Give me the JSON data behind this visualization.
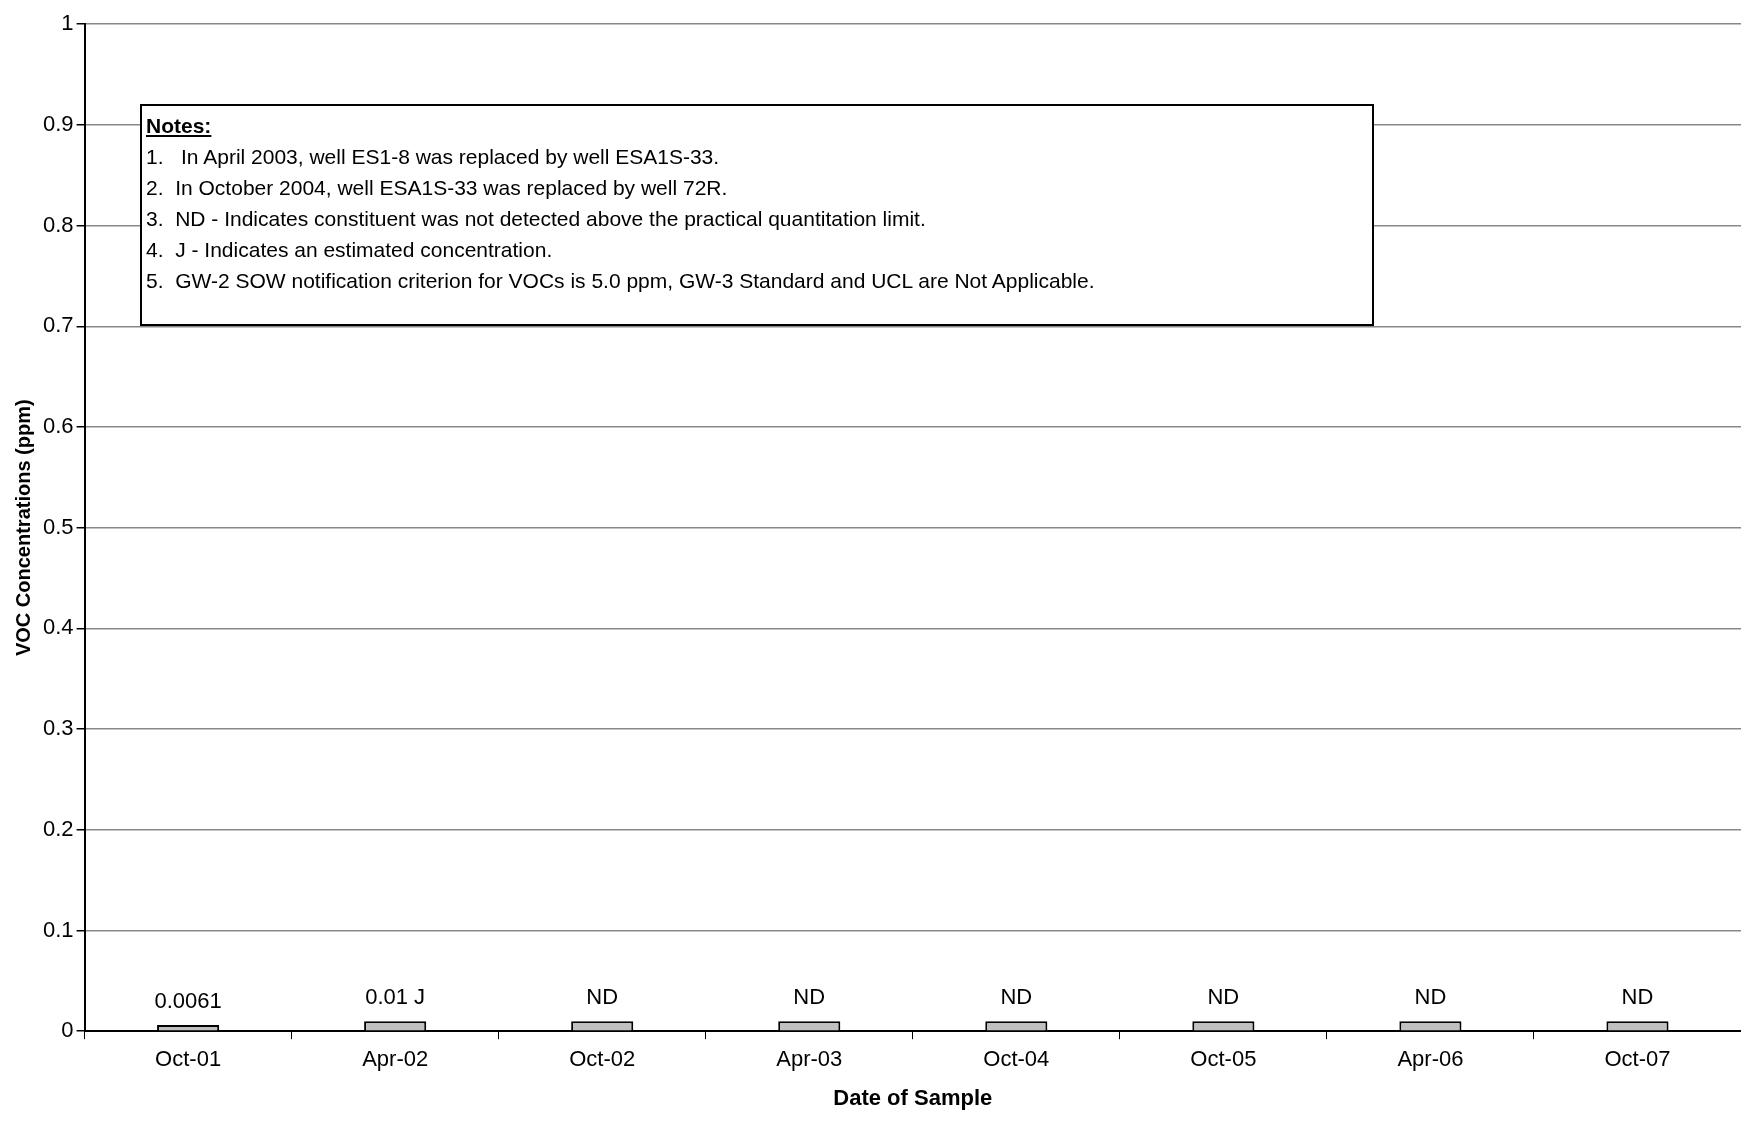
{
  "chart_data": {
    "type": "bar",
    "xlabel": "Date of Sample",
    "ylabel": "VOC Concentrations (ppm)",
    "categories": [
      "Oct-01",
      "Apr-02",
      "Oct-02",
      "Apr-03",
      "Oct-04",
      "Oct-05",
      "Apr-06",
      "Oct-07"
    ],
    "values": [
      0.0061,
      0.01,
      0.01,
      0.01,
      0.01,
      0.01,
      0.01,
      0.01
    ],
    "value_labels": [
      "0.0061",
      "0.01 J",
      "ND",
      "ND",
      "ND",
      "ND",
      "ND",
      "ND"
    ],
    "color": "#c0c0c0",
    "ylim": [
      0,
      1
    ],
    "yticks": [
      0,
      0.1,
      0.2,
      0.3,
      0.4,
      0.5,
      0.6,
      0.7,
      0.8,
      0.9,
      1
    ],
    "grid": "y",
    "annotations": [
      "Notes:",
      "1.   In April 2003, well ES1-8 was replaced by well ESA1S-33.",
      "2.  In October 2004, well ESA1S-33 was replaced by well 72R.",
      "3.  ND - Indicates constituent was not detected above the practical quantitation limit.",
      "4.  J - Indicates an estimated concentration.",
      "5.  GW-2 SOW notification criterion for VOCs is 5.0 ppm, GW-3 Standard and UCL are Not Applicable."
    ]
  }
}
